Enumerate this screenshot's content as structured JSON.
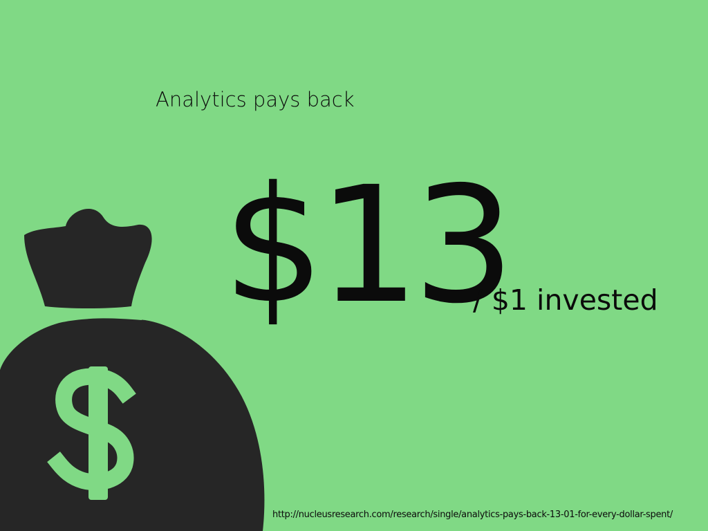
{
  "slide": {
    "heading": "Analytics pays back",
    "big_figure": "$13",
    "figure_suffix": "/ $1 invested",
    "source_url": "http://nucleusresearch.com/research/single/analytics-pays-back-13-01-for-every-dollar-spent/"
  },
  "icons": {
    "money_bag": "money-bag-icon",
    "dollar_sign": "dollar-sign-icon"
  },
  "colors": {
    "background": "#80d985",
    "ink": "#0b0b0b",
    "bag": "#262626",
    "dollar": "#80d985"
  }
}
